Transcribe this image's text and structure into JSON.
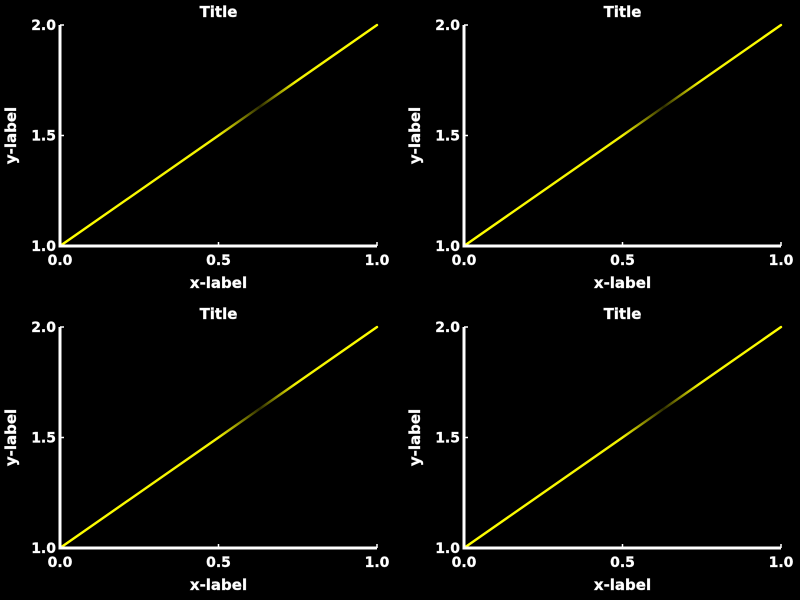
{
  "chart_data": [
    {
      "type": "line",
      "title": "Title",
      "xlabel": "x-label",
      "ylabel": "y-label",
      "xlim": [
        0.0,
        1.0
      ],
      "ylim": [
        1.0,
        2.0
      ],
      "x_ticks": [
        "0.0",
        "0.5",
        "1.0"
      ],
      "y_ticks": [
        "1.0",
        "1.5",
        "2.0"
      ],
      "grid": false,
      "series": [
        {
          "x": [
            0.0,
            0.5,
            1.0
          ],
          "y": [
            1.0,
            1.5,
            2.0
          ],
          "color": "#ffff00"
        }
      ]
    },
    {
      "type": "line",
      "title": "Title",
      "xlabel": "x-label",
      "ylabel": "y-label",
      "xlim": [
        0.0,
        1.0
      ],
      "ylim": [
        1.0,
        2.0
      ],
      "x_ticks": [
        "0.0",
        "0.5",
        "1.0"
      ],
      "y_ticks": [
        "1.0",
        "1.5",
        "2.0"
      ],
      "grid": false,
      "series": [
        {
          "x": [
            0.0,
            0.5,
            1.0
          ],
          "y": [
            1.0,
            1.5,
            2.0
          ],
          "color": "#ffff00"
        }
      ]
    },
    {
      "type": "line",
      "title": "Title",
      "xlabel": "x-label",
      "ylabel": "y-label",
      "xlim": [
        0.0,
        1.0
      ],
      "ylim": [
        1.0,
        2.0
      ],
      "x_ticks": [
        "0.0",
        "0.5",
        "1.0"
      ],
      "y_ticks": [
        "1.0",
        "1.5",
        "2.0"
      ],
      "grid": false,
      "series": [
        {
          "x": [
            0.0,
            0.5,
            1.0
          ],
          "y": [
            1.0,
            1.5,
            2.0
          ],
          "color": "#ffff00"
        }
      ]
    },
    {
      "type": "line",
      "title": "Title",
      "xlabel": "x-label",
      "ylabel": "y-label",
      "xlim": [
        0.0,
        1.0
      ],
      "ylim": [
        1.0,
        2.0
      ],
      "x_ticks": [
        "0.0",
        "0.5",
        "1.0"
      ],
      "y_ticks": [
        "1.0",
        "1.5",
        "2.0"
      ],
      "grid": false,
      "series": [
        {
          "x": [
            0.0,
            0.5,
            1.0
          ],
          "y": [
            1.0,
            1.5,
            2.0
          ],
          "color": "#ffff00"
        }
      ]
    }
  ],
  "colors": {
    "background": "#000000",
    "axis": "#ffffff",
    "text": "#ffffff",
    "line": "#ffff00"
  }
}
